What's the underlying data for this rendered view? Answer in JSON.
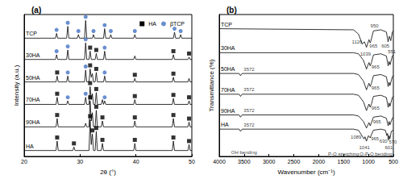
{
  "chart_data": [
    {
      "type": "line",
      "title": "(a)",
      "xlabel": "2θ (°)",
      "ylabel": "Intensity (a.u.)",
      "xlim": [
        20,
        50
      ],
      "xticks": [
        20,
        30,
        40,
        50
      ],
      "ylim": [
        0,
        120
      ],
      "tick_labels": "x",
      "grid": false,
      "legend": "upper right",
      "series": [
        {
          "name": "TCP",
          "type": "line",
          "color": "#000000",
          "line_style": "solid",
          "x": [
            20,
            25.6,
            25.8,
            26.0,
            27.6,
            27.8,
            28.0,
            29.5,
            29.7,
            29.9,
            30.8,
            31.0,
            31.2,
            32.2,
            32.4,
            32.6,
            34.2,
            34.4,
            34.6,
            35.3,
            35.5,
            35.7,
            39.6,
            39.8,
            40.0,
            46.7,
            46.9,
            47.1,
            47.8,
            48.0,
            48.2,
            50
          ],
          "values": [
            100,
            100,
            104,
            100,
            100,
            110,
            100,
            100,
            103,
            100,
            100,
            115,
            100,
            100,
            103,
            100,
            100,
            108,
            100,
            100,
            103,
            100,
            100,
            103,
            100,
            100,
            105,
            100,
            100,
            103,
            100,
            100
          ]
        },
        {
          "name": "30HA",
          "type": "line",
          "color": "#000000",
          "line_style": "solid",
          "x": [
            20,
            25.6,
            25.8,
            26.0,
            27.6,
            27.8,
            28.0,
            30.8,
            31.0,
            31.2,
            31.6,
            31.8,
            32.0,
            32.7,
            32.9,
            33.1,
            34.2,
            34.4,
            34.6,
            39.6,
            39.8,
            40.0,
            46.5,
            46.7,
            46.9,
            49.3,
            49.5,
            49.7,
            50
          ],
          "values": [
            82,
            82,
            86,
            82,
            82,
            90,
            82,
            82,
            96,
            82,
            82,
            89,
            82,
            82,
            87,
            82,
            82,
            89,
            82,
            82,
            85,
            82,
            82,
            86,
            82,
            82,
            84,
            82,
            82
          ]
        },
        {
          "name": "50HA",
          "type": "line",
          "color": "#000000",
          "line_style": "solid",
          "x": [
            20,
            25.7,
            25.9,
            26.1,
            27.6,
            27.8,
            28.0,
            30.8,
            31.0,
            31.2,
            31.6,
            31.8,
            32.0,
            32.2,
            32.4,
            32.7,
            32.9,
            33.1,
            34.2,
            34.4,
            34.6,
            39.6,
            39.8,
            40.0,
            46.5,
            46.7,
            46.9,
            49.3,
            49.5,
            49.7,
            50
          ],
          "values": [
            63,
            63,
            68,
            63,
            63,
            68,
            63,
            63,
            73,
            63,
            63,
            74,
            67,
            70,
            63,
            63,
            71,
            63,
            63,
            68,
            63,
            63,
            66,
            63,
            63,
            67,
            63,
            63,
            66,
            63,
            63
          ]
        },
        {
          "name": "70HA",
          "type": "line",
          "color": "#000000",
          "line_style": "solid",
          "x": [
            20,
            25.7,
            25.9,
            26.1,
            27.6,
            27.8,
            28.0,
            30.8,
            31.0,
            31.2,
            31.6,
            31.8,
            32.0,
            32.2,
            32.4,
            32.7,
            32.9,
            33.1,
            33.8,
            34.0,
            34.2,
            34.4,
            34.6,
            39.6,
            39.8,
            40.0,
            46.5,
            46.7,
            46.9,
            49.3,
            49.5,
            49.7,
            50
          ],
          "values": [
            44,
            44,
            50,
            44,
            44,
            47,
            44,
            44,
            50,
            44,
            44,
            59,
            48,
            53,
            44,
            44,
            54,
            44,
            44,
            48,
            44,
            47,
            44,
            44,
            48,
            44,
            44,
            49,
            44,
            44,
            47,
            44,
            44
          ]
        },
        {
          "name": "90HA",
          "type": "line",
          "color": "#000000",
          "line_style": "solid",
          "x": [
            20,
            25.7,
            25.9,
            26.1,
            30.8,
            31.0,
            31.2,
            31.6,
            31.8,
            32.0,
            32.2,
            32.4,
            32.7,
            32.9,
            33.1,
            33.8,
            34.0,
            34.2,
            39.6,
            39.8,
            40.0,
            46.5,
            46.7,
            46.9,
            49.3,
            49.5,
            49.7,
            50
          ],
          "values": [
            25,
            25,
            32,
            25,
            25,
            28,
            25,
            25,
            47,
            30,
            37,
            25,
            25,
            39,
            25,
            25,
            30,
            25,
            25,
            30,
            25,
            25,
            32,
            25,
            25,
            29,
            25,
            25
          ]
        },
        {
          "name": "HA",
          "type": "line",
          "color": "#000000",
          "line_style": "solid",
          "x": [
            20,
            25.7,
            25.9,
            26.1,
            28.7,
            28.9,
            29.1,
            31.6,
            31.8,
            32.0,
            32.2,
            32.4,
            32.7,
            32.9,
            33.1,
            33.8,
            34.0,
            34.2,
            39.6,
            39.8,
            40.0,
            46.5,
            46.7,
            46.9,
            49.3,
            49.5,
            49.7,
            50
          ],
          "values": [
            5,
            5,
            13,
            5,
            5,
            8,
            5,
            5,
            31,
            10,
            19,
            5,
            5,
            21,
            5,
            5,
            11,
            5,
            5,
            11,
            5,
            5,
            13,
            5,
            5,
            10,
            5,
            5
          ]
        },
        {
          "name": "HA",
          "type": "scatter",
          "marker": "square",
          "color": "#000000",
          "x": [
            25.9,
            28.9,
            31.8,
            32.2,
            32.9,
            34.0,
            39.8,
            46.7,
            49.5,
            25.9,
            31.8,
            32.9,
            34.0,
            39.8,
            46.7,
            49.5,
            25.9,
            31.8,
            32.9,
            39.8,
            46.7,
            49.5,
            25.9,
            31.8,
            32.9,
            39.8,
            46.7,
            31.8,
            32.9,
            46.7,
            49.5
          ],
          "values": [
            16,
            11,
            34,
            22,
            24,
            14,
            14,
            16,
            13,
            35,
            50,
            42,
            33,
            33,
            35,
            32,
            53,
            62,
            57,
            51,
            52,
            50,
            71,
            77,
            74,
            69,
            70,
            92,
            90,
            89,
            87
          ]
        },
        {
          "name": "βTCP",
          "type": "scatter",
          "marker": "circle",
          "color": "#4472c4",
          "x": [
            27.8,
            31.0,
            34.4,
            27.8,
            31.0,
            34.4,
            25.8,
            27.8,
            31.0,
            34.4,
            25.8,
            27.8,
            29.7,
            31.0,
            32.4,
            34.4,
            35.5,
            39.8,
            46.9,
            48.0
          ],
          "values": [
            50,
            53,
            50,
            71,
            76,
            71,
            89,
            93,
            99,
            92,
            107,
            113,
            106,
            118,
            106,
            111,
            106,
            106,
            108,
            106
          ]
        }
      ]
    },
    {
      "type": "line",
      "title": "(b)",
      "xlabel": "Wavenumber (cm⁻¹)",
      "ylabel": "Transmittance (%)",
      "xlim": [
        4000,
        500
      ],
      "xticks": [
        4000,
        3500,
        3000,
        2500,
        2000,
        1500,
        1000,
        500
      ],
      "ylim": [
        -10,
        120
      ],
      "tick_labels": "x",
      "grid": false,
      "series": [
        {
          "name": "TCP",
          "type": "line",
          "color": "#000000",
          "line_style": "solid",
          "x": [
            4000,
            1300,
            1200,
            1126,
            1080,
            1039,
            990,
            965,
            950,
            900,
            750,
            640,
            605,
            580,
            551,
            520,
            500
          ],
          "values": [
            107,
            106,
            102,
            93,
            95,
            90,
            97,
            94,
            96,
            105,
            106,
            104,
            95,
            100,
            96,
            104,
            105
          ]
        },
        {
          "name": "30HA",
          "type": "line",
          "color": "#000000",
          "line_style": "solid",
          "x": [
            4000,
            1300,
            1200,
            1100,
            1040,
            990,
            965,
            940,
            900,
            750,
            640,
            603,
            585,
            565,
            520,
            500
          ],
          "values": [
            85,
            85,
            84,
            78,
            70,
            76,
            73,
            76,
            83,
            84,
            82,
            73,
            77,
            74,
            82,
            83
          ]
        },
        {
          "name": "50HA",
          "type": "line",
          "color": "#000000",
          "line_style": "solid",
          "x": [
            4000,
            3600,
            3572,
            3540,
            1300,
            1200,
            1100,
            1040,
            990,
            965,
            940,
            900,
            750,
            640,
            603,
            585,
            568,
            520,
            500
          ],
          "values": [
            66,
            66,
            64,
            66,
            66,
            65,
            59,
            51,
            57,
            54,
            57,
            64,
            65,
            63,
            54,
            58,
            55,
            63,
            64
          ]
        },
        {
          "name": "70HA",
          "type": "line",
          "color": "#000000",
          "line_style": "solid",
          "x": [
            4000,
            3600,
            3572,
            3540,
            1300,
            1200,
            1100,
            1040,
            990,
            965,
            940,
            900,
            750,
            640,
            603,
            585,
            568,
            520,
            500
          ],
          "values": [
            47,
            47,
            45,
            47,
            47,
            46,
            40,
            32,
            38,
            35,
            38,
            45,
            46,
            44,
            35,
            39,
            36,
            44,
            45
          ]
        },
        {
          "name": "90HA",
          "type": "line",
          "color": "#000000",
          "line_style": "solid",
          "x": [
            4000,
            3600,
            3572,
            3540,
            1300,
            1200,
            1100,
            1040,
            990,
            965,
            940,
            900,
            750,
            640,
            603,
            585,
            568,
            520,
            500
          ],
          "values": [
            28,
            28,
            26,
            28,
            28,
            27,
            22,
            16,
            21,
            18,
            21,
            26,
            27,
            25,
            18,
            22,
            19,
            25,
            26
          ]
        },
        {
          "name": "HA",
          "type": "line",
          "color": "#000000",
          "line_style": "solid",
          "x": [
            4000,
            3600,
            3572,
            3540,
            1300,
            1200,
            1089,
            1070,
            1041,
            1000,
            965,
            940,
            900,
            750,
            660,
            630,
            615,
            601,
            585,
            570,
            540,
            500
          ],
          "values": [
            15,
            15,
            13,
            15,
            15,
            14,
            6,
            8,
            4,
            9,
            7,
            10,
            14,
            15,
            14,
            9,
            11,
            5,
            9,
            6,
            13,
            14
          ]
        }
      ],
      "annotations": [
        {
          "text": "1126",
          "x": 1230,
          "y": 95
        },
        {
          "text": "1039",
          "x": 1060,
          "y": 84
        },
        {
          "text": "965",
          "x": 900,
          "y": 91
        },
        {
          "text": "950",
          "x": 880,
          "y": 110
        },
        {
          "text": "605",
          "x": 660,
          "y": 91
        },
        {
          "text": "551",
          "x": 530,
          "y": 86
        },
        {
          "text": "965",
          "x": 860,
          "y": 72
        },
        {
          "text": "3572",
          "x": 3400,
          "y": 70
        },
        {
          "text": "965",
          "x": 860,
          "y": 53
        },
        {
          "text": "3572",
          "x": 3400,
          "y": 51
        },
        {
          "text": "965",
          "x": 860,
          "y": 34
        },
        {
          "text": "3572",
          "x": 3400,
          "y": 32
        },
        {
          "text": "965",
          "x": 830,
          "y": 22
        },
        {
          "text": "3572",
          "x": 3400,
          "y": 19
        },
        {
          "text": "OH bending",
          "x": 3500,
          "y": -6
        },
        {
          "text": "1089",
          "x": 1250,
          "y": 8
        },
        {
          "text": "1041",
          "x": 1080,
          "y": -2
        },
        {
          "text": "965",
          "x": 870,
          "y": 6
        },
        {
          "text": "630",
          "x": 700,
          "y": 4
        },
        {
          "text": "601",
          "x": 590,
          "y": -2
        },
        {
          "text": "570",
          "x": 510,
          "y": 3
        },
        {
          "text": "P-O stretching",
          "x": 1500,
          "y": -8
        },
        {
          "text": "O-P-O bending",
          "x": 850,
          "y": -8
        }
      ]
    }
  ]
}
